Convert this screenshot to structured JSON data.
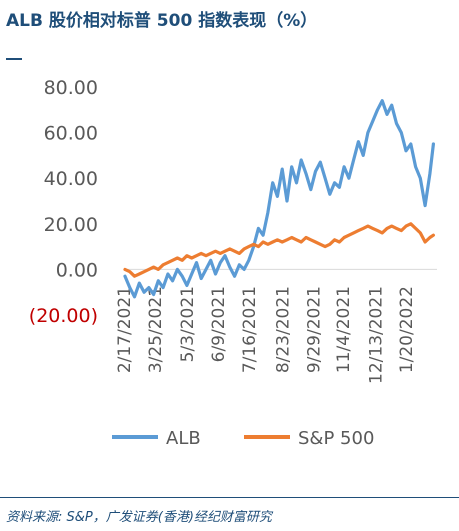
{
  "title": "ALB 股价相对标普 500 指数表现（%）",
  "source": "资料来源: S&P，广发证券(香港)经纪财富研究",
  "colors": {
    "alb": "#5b9bd5",
    "sp500": "#ed7d31",
    "title": "#1f4e79",
    "negative": "#c00000",
    "axis_text": "#595959"
  },
  "chart_data": {
    "type": "line",
    "title": "ALB 股价相对标普 500 指数表现（%）",
    "xlabel": "",
    "ylabel": "",
    "ylim": [
      -20,
      80
    ],
    "yticks": [
      "80.00",
      "60.00",
      "40.00",
      "20.00",
      "0.00",
      "(20.00)"
    ],
    "yticks_values": [
      80,
      60,
      40,
      20,
      0,
      -20
    ],
    "xticks": [
      "2/17/2021",
      "3/25/2021",
      "5/3/2021",
      "6/9/2021",
      "7/16/2021",
      "8/23/2021",
      "9/29/2021",
      "11/4/2021",
      "12/13/2021",
      "1/20/2022"
    ],
    "xticks_values": [
      0,
      26,
      53,
      79,
      105,
      133,
      159,
      184,
      211,
      237
    ],
    "xlim": [
      0,
      262
    ],
    "grid": false,
    "legend": "bottom",
    "series": [
      {
        "name": "ALB",
        "x": [
          0,
          4,
          8,
          12,
          16,
          20,
          24,
          28,
          32,
          36,
          40,
          44,
          48,
          52,
          56,
          60,
          64,
          68,
          72,
          76,
          80,
          84,
          88,
          92,
          96,
          100,
          104,
          108,
          112,
          116,
          120,
          124,
          128,
          132,
          136,
          140,
          144,
          148,
          152,
          156,
          160,
          164,
          168,
          172,
          176,
          180,
          184,
          188,
          192,
          196,
          200,
          204,
          208,
          212,
          216,
          220,
          224,
          228,
          232,
          236,
          240,
          244,
          248,
          252,
          256,
          259
        ],
        "values": [
          -3,
          -8,
          -12,
          -6,
          -10,
          -8,
          -11,
          -5,
          -8,
          -2,
          -5,
          0,
          -3,
          -7,
          -2,
          3,
          -4,
          0,
          4,
          -2,
          3,
          6,
          1,
          -3,
          2,
          0,
          4,
          10,
          18,
          15,
          25,
          38,
          32,
          44,
          30,
          45,
          38,
          48,
          42,
          35,
          43,
          47,
          40,
          33,
          38,
          36,
          45,
          40,
          48,
          56,
          50,
          60,
          65,
          70,
          74,
          68,
          72,
          64,
          60,
          52,
          55,
          45,
          40,
          28,
          42,
          55
        ]
      },
      {
        "name": "S&P 500",
        "x": [
          0,
          4,
          8,
          12,
          16,
          20,
          24,
          28,
          32,
          36,
          40,
          44,
          48,
          52,
          56,
          60,
          64,
          68,
          72,
          76,
          80,
          84,
          88,
          92,
          96,
          100,
          104,
          108,
          112,
          116,
          120,
          124,
          128,
          132,
          136,
          140,
          144,
          148,
          152,
          156,
          160,
          164,
          168,
          172,
          176,
          180,
          184,
          188,
          192,
          196,
          200,
          204,
          208,
          212,
          216,
          220,
          224,
          228,
          232,
          236,
          240,
          244,
          248,
          252,
          256,
          259
        ],
        "values": [
          0,
          -1,
          -3,
          -2,
          -1,
          0,
          1,
          0,
          2,
          3,
          4,
          5,
          4,
          6,
          5,
          6,
          7,
          6,
          7,
          8,
          7,
          8,
          9,
          8,
          7,
          9,
          10,
          11,
          10,
          12,
          11,
          12,
          13,
          12,
          13,
          14,
          13,
          12,
          14,
          13,
          12,
          11,
          10,
          11,
          13,
          12,
          14,
          15,
          16,
          17,
          18,
          19,
          18,
          17,
          16,
          18,
          19,
          18,
          17,
          19,
          20,
          18,
          16,
          12,
          14,
          15
        ]
      }
    ]
  }
}
